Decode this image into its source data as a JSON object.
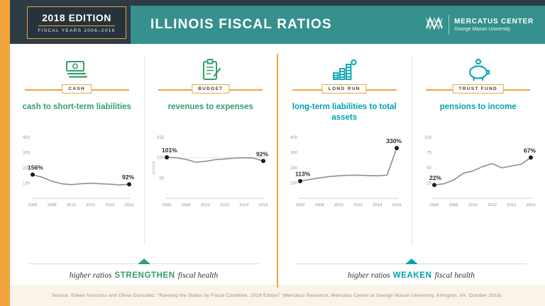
{
  "header": {
    "edition": "2018 EDITION",
    "fiscal_years": "FISCAL YEARS 2006–2016",
    "title": "ILLINOIS FISCAL RATIOS",
    "logo": {
      "name": "MERCATUS CENTER",
      "subtitle": "George Mason University"
    }
  },
  "panels": [
    {
      "category": "CASH",
      "title": "cash to short-term liabilities"
    },
    {
      "category": "BUDGET",
      "title": "revenues to expenses"
    },
    {
      "category": "LONG RUN",
      "title": "long-term liabilities to total assets"
    },
    {
      "category": "TRUST FUND",
      "title": "pensions to income"
    }
  ],
  "chart_data": [
    {
      "type": "line",
      "title": "cash to short-term liabilities",
      "x": [
        2006,
        2007,
        2008,
        2009,
        2010,
        2011,
        2012,
        2013,
        2014,
        2015,
        2016
      ],
      "values": [
        156,
        138,
        112,
        96,
        90,
        96,
        99,
        96,
        93,
        88,
        92
      ],
      "start_label": "156%",
      "end_label": "92%",
      "ylim": [
        0,
        400
      ],
      "yticks": [
        100,
        200,
        300,
        400
      ],
      "xticks": [
        2006,
        2008,
        2010,
        2012,
        2014,
        2016
      ]
    },
    {
      "type": "line",
      "title": "revenues to expenses",
      "x": [
        2006,
        2007,
        2008,
        2009,
        2010,
        2011,
        2012,
        2013,
        2014,
        2015,
        2016
      ],
      "values": [
        101,
        100,
        96,
        89,
        91,
        95,
        97,
        99,
        100,
        99,
        92
      ],
      "start_label": "101%",
      "end_label": "92%",
      "ylim": [
        0,
        150
      ],
      "yticks": [
        50,
        100,
        150
      ],
      "ref_line": 100,
      "ylabel": "percent",
      "xticks": [
        2006,
        2008,
        2010,
        2012,
        2014,
        2016
      ]
    },
    {
      "type": "line",
      "title": "long-term liabilities to total assets",
      "x": [
        2006,
        2007,
        2008,
        2009,
        2010,
        2011,
        2012,
        2013,
        2014,
        2015,
        2016
      ],
      "values": [
        113,
        124,
        134,
        143,
        148,
        151,
        152,
        150,
        148,
        152,
        330
      ],
      "start_label": "113%",
      "end_label": "330%",
      "ylim": [
        0,
        400
      ],
      "yticks": [
        100,
        200,
        300,
        400
      ],
      "xticks": [
        2006,
        2008,
        2010,
        2012,
        2014,
        2016
      ]
    },
    {
      "type": "line",
      "title": "pensions to income",
      "x": [
        2006,
        2007,
        2008,
        2009,
        2010,
        2011,
        2012,
        2013,
        2014,
        2015,
        2016
      ],
      "values": [
        22,
        24,
        30,
        41,
        45,
        52,
        57,
        50,
        53,
        56,
        67
      ],
      "start_label": "22%",
      "end_label": "67%",
      "ylim": [
        0,
        100
      ],
      "yticks": [
        25,
        50,
        75,
        100
      ],
      "xticks": [
        2006,
        2008,
        2010,
        2012,
        2014,
        2016
      ]
    }
  ],
  "footer": {
    "strengthen": {
      "prefix": "higher ratios",
      "keyword": "STRENGTHEN",
      "suffix": "fiscal health"
    },
    "weaken": {
      "prefix": "higher ratios",
      "keyword": "WEAKEN",
      "suffix": "fiscal health"
    },
    "source": "Source: Eileen Norcross and Olivia Gonzalez, “Ranking the States by Fiscal Condition, 2018 Edition” (Mercatus Research, Mercatus Center at George Mason University, Arlington, VA, October 2018)."
  },
  "colors": {
    "gold": "#F1A33B",
    "navy": "#2D3B45",
    "header_teal": "#35908E",
    "green": "#33A06A",
    "teal": "#00A3B1"
  }
}
